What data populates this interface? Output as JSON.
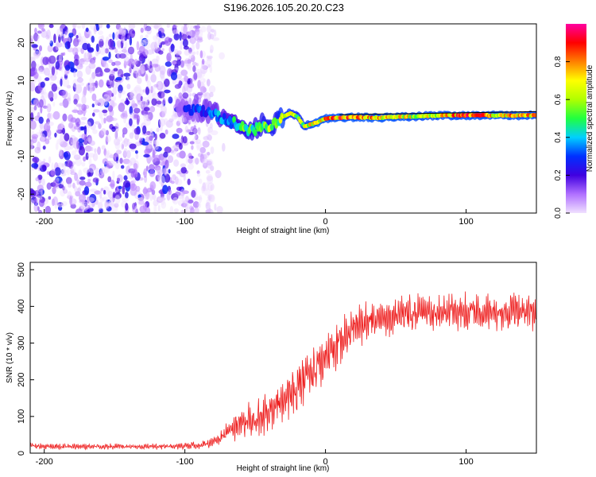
{
  "figure_title": "S196.2026.105.20.20.C23",
  "chart_data": [
    {
      "type": "heatmap",
      "title": "",
      "xlabel": "Height of straight line (km)",
      "ylabel": "Frequency (Hz)",
      "xlim": [
        -210,
        150
      ],
      "ylim": [
        -25,
        25
      ],
      "x_ticks": [
        -200,
        -100,
        0,
        100
      ],
      "y_ticks": [
        20,
        10,
        0,
        -10,
        -20
      ],
      "colorbar": {
        "label": "Normalized spectral amplitude",
        "range": [
          0.0,
          1.0
        ],
        "ticks": [
          0.0,
          0.2,
          0.4,
          0.6,
          0.8
        ],
        "colors": [
          "#f0e0ff",
          "#b070ff",
          "#4000e0",
          "#0030ff",
          "#00d0ff",
          "#20ff40",
          "#b0ff00",
          "#ffff00",
          "#ff8000",
          "#ff0000",
          "#ff00a0"
        ]
      },
      "noise_region_x": [
        -210,
        -80
      ],
      "ridge": {
        "x": [
          -100,
          -90,
          -80,
          -70,
          -60,
          -55,
          -50,
          -45,
          -40,
          -35,
          -30,
          -25,
          -20,
          -15,
          -10,
          -5,
          0,
          10,
          20,
          40,
          60,
          80,
          100,
          120,
          150
        ],
        "y": [
          2.5,
          2.2,
          1.5,
          -0.5,
          -2.0,
          -3.5,
          -3.0,
          -1.5,
          -2.0,
          -1.5,
          0.5,
          1.5,
          0.5,
          -2.0,
          -1.5,
          -1.0,
          0.0,
          0.2,
          0.3,
          0.2,
          0.5,
          0.8,
          0.8,
          0.8,
          0.8
        ],
        "amplitude": [
          0.25,
          0.3,
          0.35,
          0.4,
          0.5,
          0.55,
          0.5,
          0.55,
          0.6,
          0.55,
          0.7,
          0.65,
          0.6,
          0.65,
          0.7,
          0.75,
          0.8,
          0.85,
          0.85,
          0.75,
          0.7,
          0.7,
          0.9,
          0.8,
          0.75
        ]
      },
      "reference_line": {
        "x": [
          10,
          150
        ],
        "y": [
          1.0,
          1.8
        ]
      }
    },
    {
      "type": "line",
      "title": "",
      "xlabel": "Height of straight line (km)",
      "ylabel": "SNR (10 * v/v)",
      "xlim": [
        -210,
        150
      ],
      "ylim": [
        0,
        520
      ],
      "x_ticks": [
        -200,
        -100,
        0,
        100
      ],
      "y_ticks": [
        0,
        100,
        200,
        300,
        400,
        500
      ],
      "series": [
        {
          "name": "SNR",
          "color": "#ee2020",
          "x": [
            -210,
            -190,
            -170,
            -150,
            -130,
            -110,
            -95,
            -85,
            -80,
            -75,
            -70,
            -65,
            -60,
            -55,
            -50,
            -45,
            -40,
            -35,
            -30,
            -25,
            -20,
            -15,
            -10,
            -5,
            0,
            5,
            10,
            15,
            20,
            30,
            40,
            50,
            60,
            70,
            80,
            90,
            100,
            110,
            120,
            130,
            140,
            150
          ],
          "y": [
            20,
            18,
            18,
            18,
            18,
            18,
            20,
            25,
            30,
            40,
            55,
            70,
            85,
            95,
            80,
            100,
            120,
            140,
            150,
            165,
            180,
            200,
            215,
            240,
            260,
            280,
            300,
            320,
            340,
            360,
            370,
            375,
            380,
            380,
            385,
            385,
            390,
            385,
            380,
            385,
            380,
            385
          ],
          "spread": [
            8,
            8,
            8,
            8,
            8,
            8,
            10,
            12,
            15,
            20,
            30,
            40,
            45,
            50,
            55,
            60,
            60,
            65,
            65,
            70,
            70,
            70,
            75,
            75,
            70,
            70,
            65,
            60,
            60,
            55,
            55,
            55,
            55,
            50,
            50,
            50,
            55,
            50,
            50,
            50,
            50,
            50
          ]
        }
      ]
    }
  ]
}
